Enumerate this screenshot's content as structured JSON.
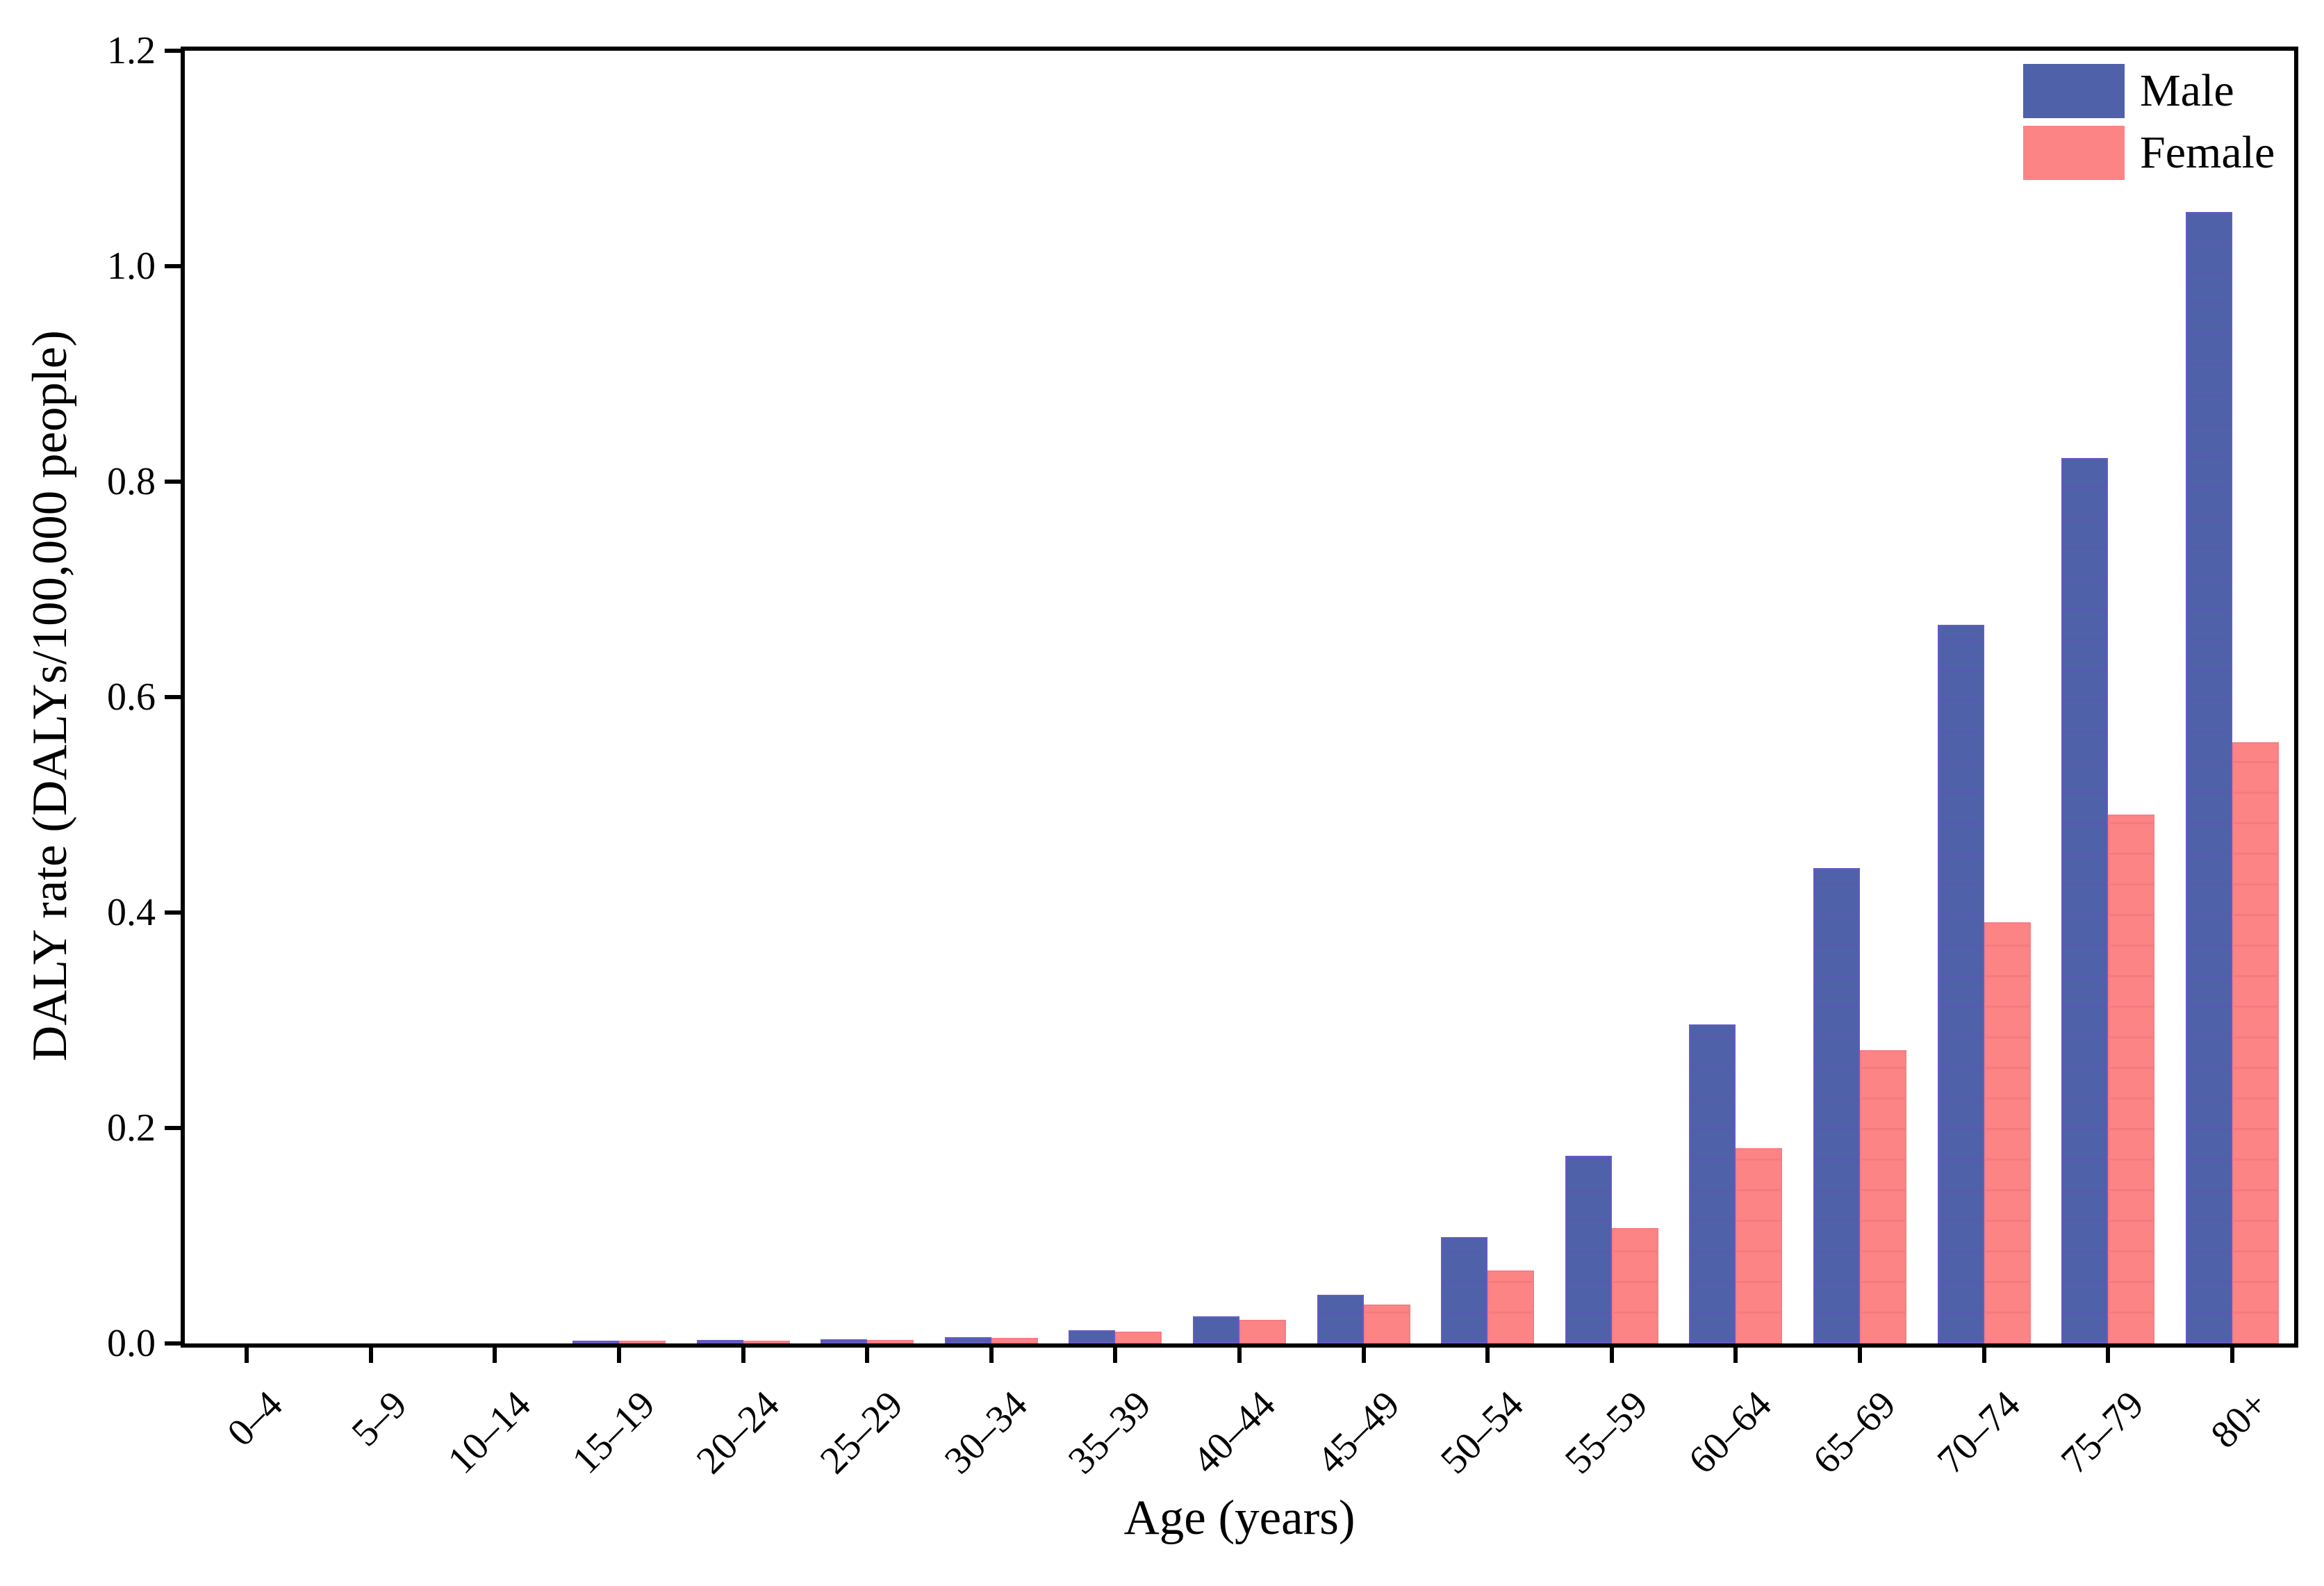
{
  "chart_data": {
    "type": "bar",
    "title": "",
    "xlabel": "Age (years)",
    "ylabel": "DALY rate (DALYs/100,000 people)",
    "categories": [
      "0–4",
      "5–9",
      "10–14",
      "15–19",
      "20–24",
      "25–29",
      "30–34",
      "35–39",
      "40–44",
      "45–49",
      "50–54",
      "55–59",
      "60–64",
      "65–69",
      "70–74",
      "75–79",
      "80+"
    ],
    "series": [
      {
        "name": "Male",
        "color": "#4E61A9",
        "edge_color": "#685AC4",
        "values": [
          0,
          0,
          0,
          0.001,
          0.003,
          0.004,
          0.006,
          0.012,
          0.025,
          0.045,
          0.099,
          0.174,
          0.296,
          0.441,
          0.667,
          0.822,
          1.05
        ]
      },
      {
        "name": "Female",
        "color": "#FC8484",
        "edge_color": "#F77C85",
        "values": [
          0,
          0,
          0,
          0.001,
          0.002,
          0.003,
          0.005,
          0.011,
          0.022,
          0.036,
          0.068,
          0.107,
          0.181,
          0.272,
          0.391,
          0.491,
          0.558
        ]
      }
    ],
    "ylim": [
      0,
      1.2
    ],
    "yticks": [
      "0.0",
      "0.2",
      "0.4",
      "0.6",
      "0.8",
      "1.0",
      "1.2"
    ],
    "xtick_rotation": 45,
    "grid": false,
    "legend_position": "upper right",
    "frame": "full-box",
    "background_color": "#FFFFFF",
    "text_color": "#000000"
  }
}
